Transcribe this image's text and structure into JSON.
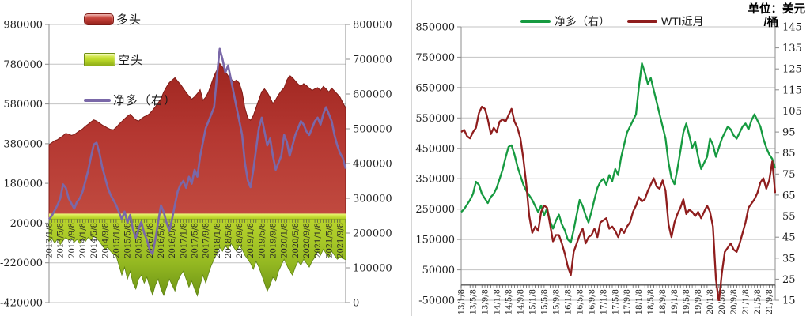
{
  "unit": {
    "line1": "单位：美元",
    "line2": "/桶"
  },
  "left_chart": {
    "y_left_labels": [
      "980000",
      "780000",
      "580000",
      "380000",
      "180000",
      "-20000",
      "-220000",
      "-420000"
    ],
    "y_right_labels": [
      "800000",
      "700000",
      "600000",
      "500000",
      "400000",
      "300000",
      "200000",
      "100000",
      "0"
    ]
  },
  "right_chart": {
    "y_left_labels": [
      "850000",
      "750000",
      "650000",
      "550000",
      "450000",
      "350000",
      "250000",
      "150000",
      "50000",
      "-50000"
    ],
    "y_right_labels": [
      "145",
      "135",
      "125",
      "115",
      "105",
      "95",
      "85",
      "75",
      "65",
      "55",
      "45",
      "35",
      "25",
      "15"
    ]
  },
  "chart_data": [
    {
      "type": "area",
      "title": "",
      "x_interval": "monthly",
      "x_start": "2013/1",
      "x_end": "2021/11",
      "x_tick_labels": [
        "2013/1/8",
        "2013/5/8",
        "2013/9/8",
        "2014/1/8",
        "2014/5/8",
        "2014/9/8",
        "2015/1/8",
        "2015/5/8",
        "2015/9/8",
        "2016/1/8",
        "2016/5/8",
        "2016/9/8",
        "2017/1/8",
        "2017/5/8",
        "2017/9/8",
        "2018/1/8",
        "2018/5/8",
        "2018/9/8",
        "2019/1/8",
        "2019/5/8",
        "2019/9/8",
        "2020/1/8",
        "2020/5/8",
        "2020/9/8",
        "2021/1/8",
        "2021/5/8",
        "2021/9/8"
      ],
      "y_left": {
        "min": -420000,
        "max": 980000,
        "step": 200000
      },
      "y_right": {
        "min": 0,
        "max": 800000,
        "step": 100000
      },
      "grid": "horizontal",
      "series": [
        {
          "name": "多头",
          "type": "area",
          "axis": "left",
          "color": "#b23430",
          "values": [
            375000,
            385000,
            395000,
            400000,
            410000,
            420000,
            432000,
            428000,
            422000,
            426000,
            436000,
            446000,
            455000,
            468000,
            478000,
            490000,
            500000,
            494000,
            484000,
            474000,
            466000,
            458000,
            452000,
            450000,
            462000,
            478000,
            492000,
            505000,
            518000,
            528000,
            514000,
            500000,
            494000,
            506000,
            516000,
            522000,
            532000,
            548000,
            566000,
            586000,
            606000,
            640000,
            666000,
            688000,
            700000,
            712000,
            694000,
            678000,
            658000,
            638000,
            620000,
            604000,
            616000,
            632000,
            652000,
            598000,
            614000,
            642000,
            682000,
            722000,
            752000,
            784000,
            766000,
            742000,
            722000,
            706000,
            692000,
            700000,
            684000,
            640000,
            560000,
            510000,
            498000,
            522000,
            562000,
            602000,
            642000,
            656000,
            638000,
            612000,
            582000,
            602000,
            626000,
            646000,
            662000,
            700000,
            724000,
            712000,
            696000,
            680000,
            668000,
            682000,
            672000,
            660000,
            648000,
            656000,
            662000,
            648000,
            668000,
            656000,
            640000,
            660000,
            645000,
            630000,
            614000,
            586000,
            560000
          ]
        },
        {
          "name": "空头",
          "type": "area",
          "axis": "left",
          "color": "#a9c827",
          "values": [
            -112000,
            -96000,
            -120000,
            -100000,
            -128000,
            -108000,
            -92000,
            -106000,
            -96000,
            -116000,
            -102000,
            -122000,
            -96000,
            -112000,
            -92000,
            -106000,
            -86000,
            -96000,
            -112000,
            -132000,
            -152000,
            -142000,
            -162000,
            -176000,
            -186000,
            -232000,
            -282000,
            -242000,
            -302000,
            -262000,
            -322000,
            -352000,
            -302000,
            -282000,
            -322000,
            -292000,
            -342000,
            -382000,
            -332000,
            -302000,
            -352000,
            -384000,
            -342000,
            -302000,
            -332000,
            -362000,
            -312000,
            -282000,
            -262000,
            -302000,
            -342000,
            -312000,
            -352000,
            -386000,
            -332000,
            -282000,
            -322000,
            -272000,
            -232000,
            -202000,
            -172000,
            -142000,
            -162000,
            -132000,
            -152000,
            -122000,
            -142000,
            -162000,
            -132000,
            -152000,
            -182000,
            -202000,
            -222000,
            -252000,
            -212000,
            -242000,
            -282000,
            -322000,
            -362000,
            -332000,
            -292000,
            -312000,
            -262000,
            -232000,
            -202000,
            -232000,
            -262000,
            -282000,
            -242000,
            -212000,
            -232000,
            -202000,
            -222000,
            -242000,
            -212000,
            -192000,
            -162000,
            -182000,
            -152000,
            -172000,
            -192000,
            -162000,
            -182000,
            -202000,
            -192000,
            -198000,
            -205000
          ]
        },
        {
          "name": "净多（右）",
          "type": "line",
          "axis": "right",
          "color": "#7a68a8",
          "values": [
            240000,
            250000,
            265000,
            280000,
            300000,
            340000,
            330000,
            300000,
            285000,
            270000,
            290000,
            300000,
            320000,
            350000,
            380000,
            420000,
            455000,
            460000,
            430000,
            390000,
            360000,
            330000,
            310000,
            295000,
            280000,
            260000,
            240000,
            262000,
            230000,
            252000,
            210000,
            186000,
            212000,
            232000,
            200000,
            180000,
            150000,
            140000,
            182000,
            232000,
            280000,
            260000,
            230000,
            206000,
            242000,
            282000,
            320000,
            340000,
            350000,
            330000,
            362000,
            342000,
            382000,
            362000,
            420000,
            462000,
            502000,
            522000,
            542000,
            562000,
            652000,
            730000,
            700000,
            662000,
            682000,
            642000,
            602000,
            562000,
            522000,
            482000,
            402000,
            352000,
            332000,
            382000,
            442000,
            502000,
            532000,
            492000,
            452000,
            472000,
            422000,
            382000,
            402000,
            422000,
            482000,
            462000,
            422000,
            452000,
            482000,
            502000,
            522000,
            512000,
            492000,
            482000,
            502000,
            522000,
            532000,
            512000,
            542000,
            562000,
            542000,
            522000,
            482000,
            452000,
            430000,
            415000,
            385000
          ]
        }
      ]
    },
    {
      "type": "line",
      "title": "单位：美元/桶",
      "x_interval": "monthly",
      "x_start": "2013/1",
      "x_end": "2021/11",
      "x_tick_labels": [
        "13/1/8",
        "13/5/8",
        "13/9/8",
        "14/1/8",
        "14/5/8",
        "14/9/8",
        "15/1/8",
        "15/5/8",
        "15/9/8",
        "16/1/8",
        "16/5/8",
        "16/9/8",
        "17/1/8",
        "17/5/8",
        "17/9/8",
        "18/1/8",
        "18/5/8",
        "18/9/8",
        "19/1/8",
        "19/5/8",
        "19/9/8",
        "20/1/8",
        "20/5/8",
        "20/9/8",
        "21/1/8",
        "21/5/8",
        "21/9/8"
      ],
      "y_left": {
        "min": -50000,
        "max": 850000,
        "step": 100000
      },
      "y_right": {
        "min": 15,
        "max": 145,
        "step": 10
      },
      "grid": "horizontal",
      "series": [
        {
          "name": "净多（右）",
          "type": "line",
          "axis": "left",
          "color": "#169a40",
          "values": [
            240000,
            250000,
            265000,
            280000,
            300000,
            340000,
            330000,
            300000,
            285000,
            270000,
            290000,
            300000,
            320000,
            350000,
            380000,
            420000,
            455000,
            460000,
            430000,
            390000,
            360000,
            330000,
            310000,
            295000,
            280000,
            260000,
            240000,
            262000,
            230000,
            252000,
            210000,
            186000,
            212000,
            232000,
            200000,
            180000,
            150000,
            140000,
            182000,
            232000,
            280000,
            260000,
            230000,
            206000,
            242000,
            282000,
            320000,
            340000,
            350000,
            330000,
            362000,
            342000,
            382000,
            362000,
            420000,
            462000,
            502000,
            522000,
            542000,
            562000,
            652000,
            730000,
            700000,
            662000,
            682000,
            642000,
            602000,
            562000,
            522000,
            482000,
            402000,
            352000,
            332000,
            382000,
            442000,
            502000,
            532000,
            492000,
            452000,
            472000,
            422000,
            382000,
            402000,
            422000,
            482000,
            462000,
            422000,
            452000,
            482000,
            502000,
            522000,
            512000,
            492000,
            482000,
            502000,
            522000,
            532000,
            512000,
            542000,
            562000,
            542000,
            522000,
            482000,
            452000,
            430000,
            415000,
            385000
          ]
        },
        {
          "name": "WTI近月",
          "type": "line",
          "axis": "right",
          "color": "#8f1d1d",
          "values": [
            95,
            96,
            93,
            92,
            95,
            97,
            104,
            107,
            106,
            101,
            94,
            97,
            95,
            100,
            101,
            100,
            103,
            106,
            100,
            97,
            92,
            82,
            70,
            55,
            47,
            50,
            48,
            57,
            60,
            59,
            51,
            43,
            46,
            46,
            42,
            37,
            31,
            27,
            38,
            42,
            46,
            49,
            42,
            45,
            46,
            49,
            45,
            52,
            53,
            54,
            49,
            50,
            48,
            45,
            49,
            47,
            50,
            52,
            57,
            60,
            64,
            62,
            63,
            67,
            70,
            73,
            69,
            68,
            72,
            67,
            51,
            45,
            52,
            56,
            59,
            63,
            56,
            58,
            57,
            55,
            57,
            54,
            57,
            60,
            57,
            50,
            25,
            14,
            28,
            38,
            40,
            42,
            39,
            38,
            42,
            47,
            52,
            59,
            61,
            63,
            66,
            71,
            73,
            68,
            72,
            81,
            66
          ]
        }
      ]
    }
  ]
}
